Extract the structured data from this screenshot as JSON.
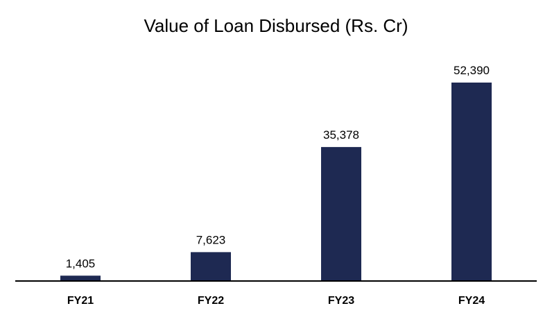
{
  "chart_data": {
    "type": "bar",
    "title": "Value of Loan Disbursed (Rs. Cr)",
    "categories": [
      "FY21",
      "FY22",
      "FY23",
      "FY24"
    ],
    "values": [
      1405,
      7623,
      35378,
      52390
    ],
    "value_labels": [
      "1,405",
      "7,623",
      "35,378",
      "52,390"
    ],
    "xlabel": "",
    "ylabel": "",
    "ylim": [
      0,
      52390
    ],
    "grid": false,
    "legend": "none",
    "bar_color": "#1e2952",
    "axis_color": "#000000"
  }
}
